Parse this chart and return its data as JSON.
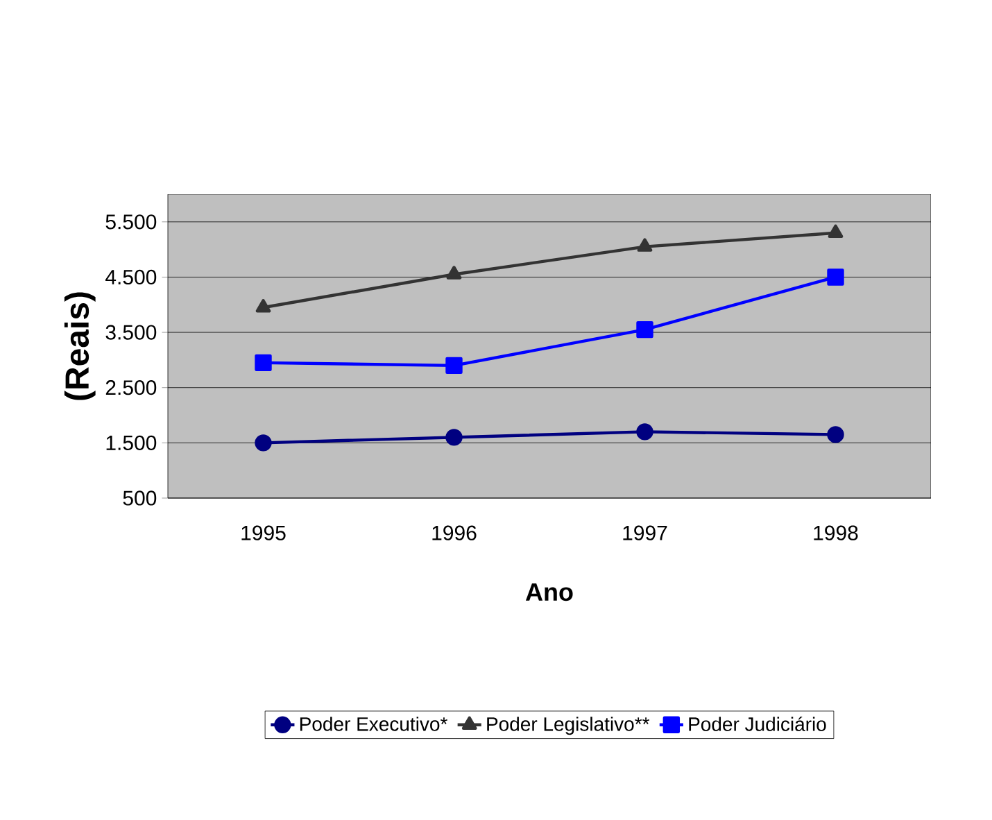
{
  "chart_data": {
    "type": "line",
    "xlabel": "Ano",
    "ylabel": "(Reais)",
    "categories": [
      "1995",
      "1996",
      "1997",
      "1998"
    ],
    "series": [
      {
        "name": "Poder Executivo*",
        "color": "#000080",
        "marker": "circle",
        "values": [
          1500,
          1600,
          1700,
          1650
        ]
      },
      {
        "name": "Poder Legislativo**",
        "color": "#333333",
        "marker": "triangle",
        "values": [
          3950,
          4550,
          5050,
          5300
        ]
      },
      {
        "name": "Poder Judiciário",
        "color": "#0000ff",
        "marker": "square",
        "values": [
          2950,
          2900,
          3550,
          4500
        ]
      }
    ],
    "ylim": [
      500,
      6000
    ],
    "yticks": [
      {
        "value": 500,
        "label": "500"
      },
      {
        "value": 1500,
        "label": "1.500"
      },
      {
        "value": 2500,
        "label": "2.500"
      },
      {
        "value": 3500,
        "label": "3.500"
      },
      {
        "value": 4500,
        "label": "4.500"
      },
      {
        "value": 5500,
        "label": "5.500"
      }
    ],
    "grid": "y",
    "legend": "bottom",
    "line_style": "solid"
  }
}
